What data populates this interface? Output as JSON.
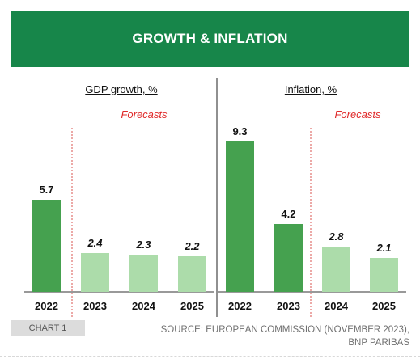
{
  "header": {
    "title": "GROWTH & INFLATION"
  },
  "footer": {
    "chart_label": "CHART 1",
    "source_line1": "SOURCE: EUROPEAN COMMISSION (NOVEMBER 2023),",
    "source_line2": "BNP PARIBAS"
  },
  "colors": {
    "header_bg": "#17864a",
    "actual_bar": "#45a14f",
    "forecast_bar": "#acdcaa",
    "forecast_text": "#e02b2b",
    "forecast_divider": "#d9534f"
  },
  "chart_data": [
    {
      "type": "bar",
      "title": "GDP growth, %",
      "categories": [
        "2022",
        "2023",
        "2024",
        "2025"
      ],
      "values": [
        5.7,
        2.4,
        2.3,
        2.2
      ],
      "value_labels": [
        "5.7",
        "2.4",
        "2.3",
        "2.2"
      ],
      "forecast": [
        false,
        true,
        true,
        true
      ],
      "forecast_label": "Forecasts",
      "ylim": [
        0,
        10
      ]
    },
    {
      "type": "bar",
      "title": "Inflation, %",
      "categories": [
        "2022",
        "2023",
        "2024",
        "2025"
      ],
      "values": [
        9.3,
        4.2,
        2.8,
        2.1
      ],
      "value_labels": [
        "9.3",
        "4.2",
        "2.8",
        "2.1"
      ],
      "forecast": [
        false,
        false,
        true,
        true
      ],
      "forecast_label": "Forecasts",
      "ylim": [
        0,
        10
      ]
    }
  ]
}
